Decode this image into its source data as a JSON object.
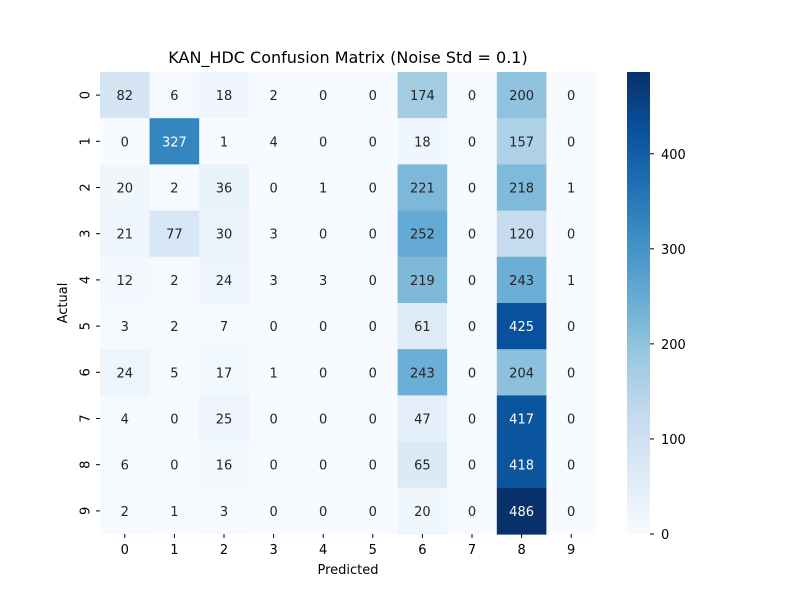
{
  "chart_data": {
    "type": "heatmap",
    "title": "KAN_HDC Confusion Matrix (Noise Std = 0.1)",
    "xlabel": "Predicted",
    "ylabel": "Actual",
    "x_categories": [
      "0",
      "1",
      "2",
      "3",
      "4",
      "5",
      "6",
      "7",
      "8",
      "9"
    ],
    "y_categories": [
      "0",
      "1",
      "2",
      "3",
      "4",
      "5",
      "6",
      "7",
      "8",
      "9"
    ],
    "values": [
      [
        82,
        6,
        18,
        2,
        0,
        0,
        174,
        0,
        200,
        0
      ],
      [
        0,
        327,
        1,
        4,
        0,
        0,
        18,
        0,
        157,
        0
      ],
      [
        20,
        2,
        36,
        0,
        1,
        0,
        221,
        0,
        218,
        1
      ],
      [
        21,
        77,
        30,
        3,
        0,
        0,
        252,
        0,
        120,
        0
      ],
      [
        12,
        2,
        24,
        3,
        3,
        0,
        219,
        0,
        243,
        1
      ],
      [
        3,
        2,
        7,
        0,
        0,
        0,
        61,
        0,
        425,
        0
      ],
      [
        24,
        5,
        17,
        1,
        0,
        0,
        243,
        0,
        204,
        0
      ],
      [
        4,
        0,
        25,
        0,
        0,
        0,
        47,
        0,
        417,
        0
      ],
      [
        6,
        0,
        16,
        0,
        0,
        0,
        65,
        0,
        418,
        0
      ],
      [
        2,
        1,
        3,
        0,
        0,
        0,
        20,
        0,
        486,
        0
      ]
    ],
    "colormap": "Blues",
    "color_range": [
      0,
      486
    ],
    "colorbar_ticks": [
      "0",
      "100",
      "200",
      "300",
      "400"
    ],
    "colorbar_tick_values": [
      0,
      100,
      200,
      300,
      400
    ],
    "annotations": true,
    "grid": false,
    "legend": "colorbar-right"
  }
}
